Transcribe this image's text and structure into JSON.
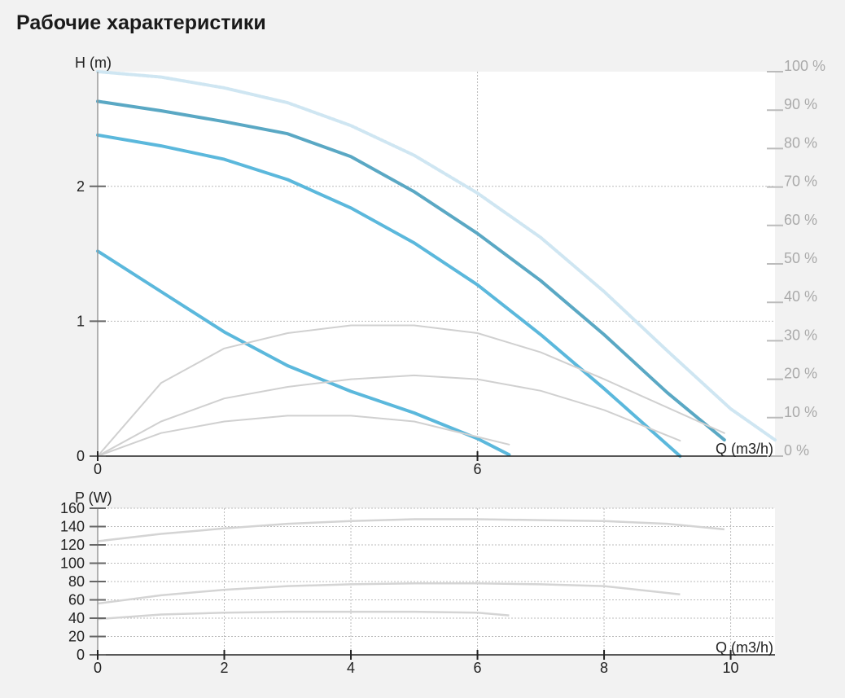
{
  "title": "Рабочие характеристики",
  "chart_data": [
    {
      "id": "head",
      "type": "line",
      "xlabel": "Q (m3/h)",
      "ylabel": "H (m)",
      "y2label": "",
      "xlim": [
        0,
        10.7
      ],
      "ylim": [
        0,
        2.85
      ],
      "y2lim": [
        0,
        100
      ],
      "x_ticks": [
        0,
        6
      ],
      "x_grid": [
        6
      ],
      "y_ticks": [
        0,
        1,
        2
      ],
      "y_grid": [
        1,
        2
      ],
      "y2_ticks": [
        "0 %",
        "10 %",
        "20 %",
        "30 %",
        "40 %",
        "50 %",
        "60 %",
        "70 %",
        "80 %",
        "90 %",
        "100 %"
      ],
      "grid": true,
      "colors": {
        "curve_light": "#5bb8dc",
        "curve_dark": "#5aa8c4",
        "envelope": "#cfe6f2",
        "efficiency": "#d0d0d0",
        "grid": "#bbbbbb"
      },
      "series": [
        {
          "style": "envelope",
          "x": [
            0,
            1,
            2,
            3,
            4,
            5,
            6,
            7,
            8,
            9,
            10,
            10.7
          ],
          "y": [
            2.85,
            2.81,
            2.73,
            2.62,
            2.45,
            2.23,
            1.95,
            1.62,
            1.22,
            0.78,
            0.35,
            0.12
          ]
        },
        {
          "style": "dark",
          "x": [
            0,
            1,
            2,
            3,
            4,
            5,
            6,
            7,
            8,
            9,
            9.9
          ],
          "y": [
            2.63,
            2.56,
            2.48,
            2.39,
            2.22,
            1.96,
            1.65,
            1.3,
            0.9,
            0.47,
            0.12
          ]
        },
        {
          "style": "light",
          "x": [
            0,
            1,
            2,
            3,
            4,
            5,
            6,
            7,
            8,
            9.2
          ],
          "y": [
            2.38,
            2.3,
            2.2,
            2.05,
            1.84,
            1.58,
            1.27,
            0.9,
            0.5,
            0
          ]
        },
        {
          "style": "light",
          "x": [
            0,
            1,
            2,
            3,
            4,
            5,
            6,
            6.5
          ],
          "y": [
            1.52,
            1.22,
            0.92,
            0.67,
            0.48,
            0.32,
            0.13,
            0.01
          ]
        },
        {
          "style": "efficiency",
          "axis": "y2",
          "x": [
            0,
            1,
            2,
            3,
            4,
            5,
            6,
            7,
            8,
            9.9
          ],
          "y": [
            0,
            19,
            28,
            32,
            34,
            34,
            32,
            27,
            20,
            6
          ]
        },
        {
          "style": "efficiency",
          "axis": "y2",
          "x": [
            0,
            1,
            2,
            3,
            4,
            5,
            6,
            7,
            8,
            9.2
          ],
          "y": [
            0,
            9,
            15,
            18,
            20,
            21,
            20,
            17,
            12,
            4
          ]
        },
        {
          "style": "efficiency",
          "axis": "y2",
          "x": [
            0,
            1,
            2,
            3,
            4,
            5,
            6,
            6.5
          ],
          "y": [
            0,
            6,
            9,
            10.5,
            10.5,
            9,
            5,
            3
          ]
        }
      ]
    },
    {
      "id": "power",
      "type": "line",
      "xlabel": "Q (m3/h)",
      "ylabel": "P (W)",
      "xlim": [
        0,
        10.7
      ],
      "ylim": [
        0,
        160
      ],
      "x_ticks": [
        0,
        2,
        4,
        6,
        8,
        10
      ],
      "y_ticks": [
        0,
        20,
        40,
        60,
        80,
        100,
        120,
        140,
        160
      ],
      "grid": true,
      "colors": {
        "power": "#d4d4d4",
        "grid": "#bbbbbb"
      },
      "series": [
        {
          "x": [
            0,
            1,
            2,
            3,
            4,
            5,
            6,
            7,
            8,
            9,
            9.9
          ],
          "y": [
            124,
            132,
            138,
            143,
            146,
            148,
            148,
            147,
            146,
            143,
            137
          ]
        },
        {
          "x": [
            0,
            1,
            2,
            3,
            4,
            5,
            6,
            7,
            8,
            9.2
          ],
          "y": [
            56,
            65,
            71,
            75,
            77,
            78,
            78,
            77,
            75,
            66
          ]
        },
        {
          "x": [
            0,
            1,
            2,
            3,
            4,
            5,
            6,
            6.5
          ],
          "y": [
            39,
            44,
            46,
            47,
            47,
            47,
            46,
            43
          ]
        }
      ]
    }
  ]
}
